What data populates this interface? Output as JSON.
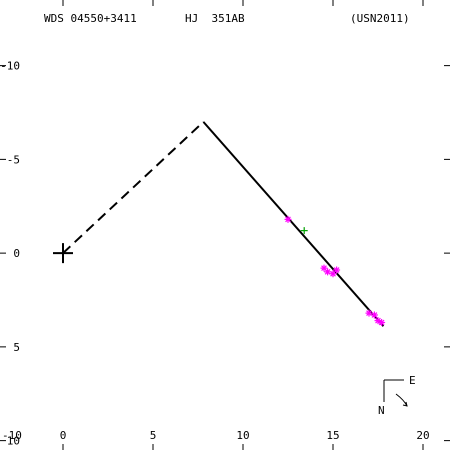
{
  "header": {
    "system_id": "WDS 04550+3411",
    "pair_name": "HJ  351AB",
    "reference": "(USN2011)"
  },
  "orientation": {
    "east_label": "E",
    "north_label": "N"
  },
  "colors": {
    "measures": "#ff00ff",
    "highlight": "#00a000",
    "lines": "#000000"
  },
  "chart_data": {
    "type": "scatter",
    "title": "",
    "xlabel": "",
    "ylabel": "",
    "xlim": [
      -3.5,
      21.5
    ],
    "ylim": [
      -10.5,
      13.5
    ],
    "y_axis_inverted": true,
    "x_ticks": [
      0,
      5,
      10,
      15,
      20
    ],
    "y_ticks": [
      -10,
      -5,
      0,
      5,
      10
    ],
    "x_tick_labels": [
      "0",
      "5",
      "10",
      "15",
      "20"
    ],
    "y_tick_labels": [
      "10",
      "5",
      "0",
      "-5",
      "-10"
    ],
    "primary_marker": {
      "x": 0,
      "y": 0,
      "symbol": "+"
    },
    "dashed_segment": {
      "from": [
        0,
        0
      ],
      "to": [
        7.8,
        7.0
      ]
    },
    "solid_segment": {
      "from": [
        7.8,
        7.0
      ],
      "to": [
        17.8,
        -3.9
      ]
    },
    "series": [
      {
        "symbol": "*",
        "color": "#ff00ff",
        "points": [
          [
            12.5,
            1.8
          ],
          [
            14.5,
            -0.8
          ],
          [
            14.7,
            -1.0
          ],
          [
            15.0,
            -1.1
          ],
          [
            15.2,
            -0.9
          ],
          [
            17.0,
            -3.2
          ],
          [
            17.3,
            -3.3
          ],
          [
            17.5,
            -3.6
          ],
          [
            17.7,
            -3.7
          ]
        ]
      },
      {
        "symbol": "+",
        "color": "#00a000",
        "points": [
          [
            13.4,
            1.2
          ]
        ]
      }
    ]
  }
}
